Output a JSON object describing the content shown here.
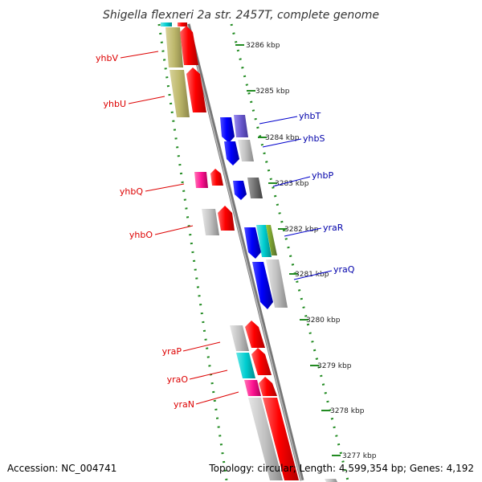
{
  "title": "Shigella flexneri 2a str. 2457T, complete genome",
  "footer": {
    "accession": "Accession: NC_004741",
    "topology": "Topology: circular; Length: 4,599,354 bp; Genes: 4,192"
  },
  "scale_labels": [
    "3286 kbp",
    "3285 kbp",
    "3284 kbp",
    "3283 kbp",
    "3282 kbp",
    "3281 kbp",
    "3280 kbp",
    "3279 kbp",
    "3278 kbp",
    "3277 kbp"
  ],
  "gene_labels": {
    "left": [
      "yhbV",
      "yhbU",
      "yhbQ",
      "yhbO",
      "yraP",
      "yraO",
      "yraN"
    ],
    "right": [
      "yhbT",
      "yhbS",
      "yhbP",
      "yraR",
      "yraQ"
    ]
  },
  "colors": {
    "red": "#ff0000",
    "blue": "#0000ff",
    "olive": "#bdb76b",
    "magenta": "#ff1493",
    "cyan": "#00ced1",
    "gray": "#c0c0c0",
    "dark_gray": "#808080",
    "purple": "#6a5acd",
    "green_dash": "#228b22",
    "backbone": "#888888"
  }
}
